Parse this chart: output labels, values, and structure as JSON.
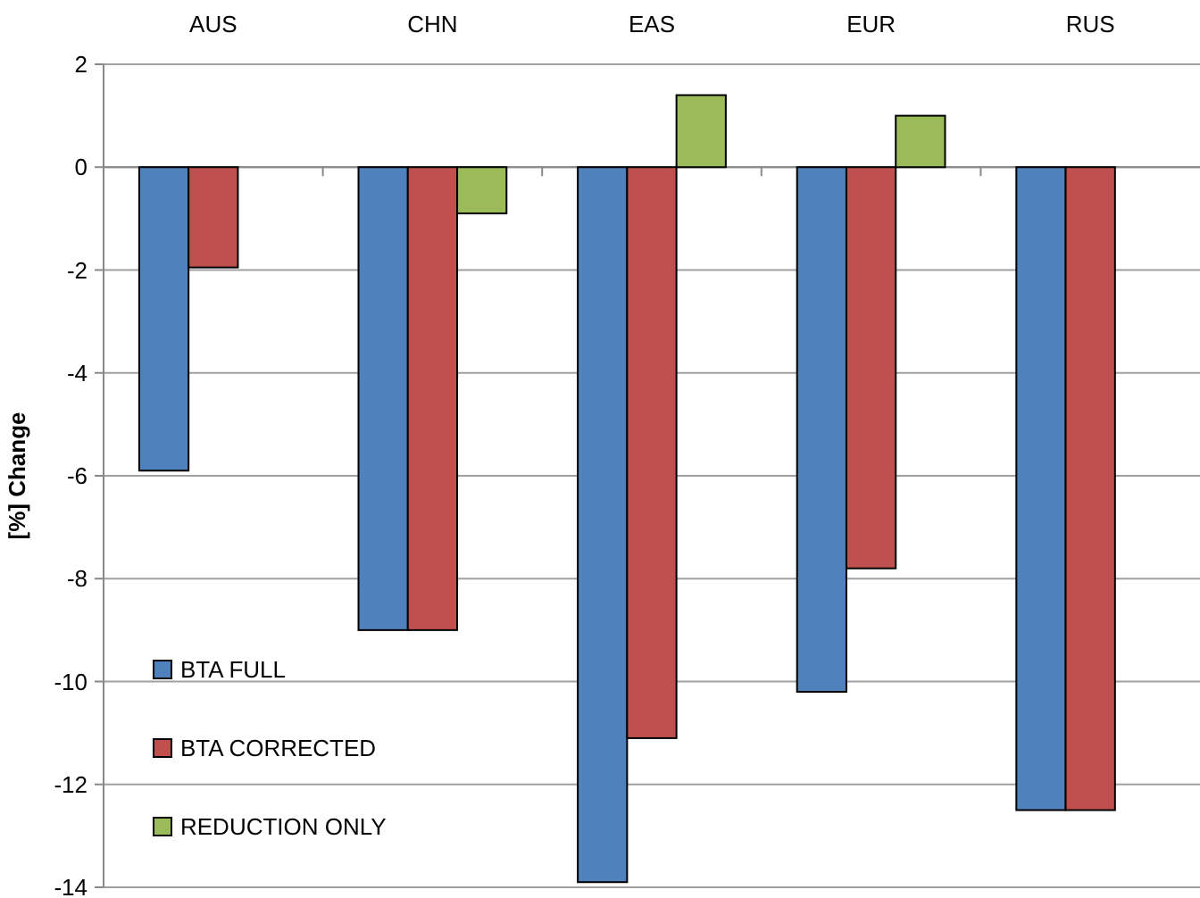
{
  "chart_data": {
    "type": "bar",
    "ylabel": "[%] Change",
    "categories": [
      "AUS",
      "CHN",
      "EAS",
      "EUR",
      "RUS"
    ],
    "series": [
      {
        "name": "BTA FULL",
        "color": "#4f81bd",
        "values": [
          -5.9,
          -9,
          -13.9,
          -10.2,
          -12.5
        ]
      },
      {
        "name": "BTA CORRECTED",
        "color": "#c0504d",
        "values": [
          -1.95,
          -9,
          -11.1,
          -7.8,
          -12.5
        ]
      },
      {
        "name": "REDUCTION ONLY",
        "color": "#9bbb59",
        "values": [
          null,
          -0.9,
          1.4,
          1.0,
          null
        ]
      }
    ],
    "ylim": [
      -14,
      2
    ],
    "yticks": [
      -14,
      -12,
      -10,
      -8,
      -6,
      -4,
      -2,
      0,
      2
    ],
    "grid": "y",
    "legend": "bottom left"
  }
}
